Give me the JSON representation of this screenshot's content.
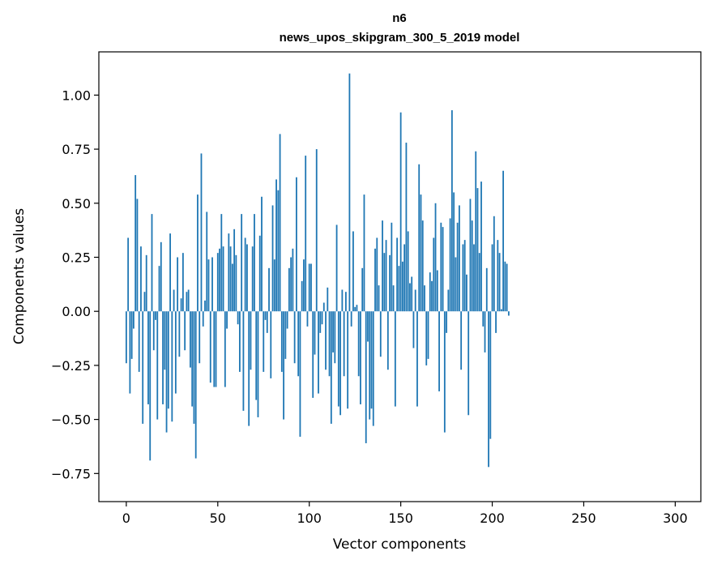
{
  "chart_data": {
    "type": "bar",
    "title": "n6",
    "subtitle": "news_upos_skipgram_300_5_2019 model",
    "xlabel": "Vector components",
    "ylabel": "Components values",
    "xlim": [
      -15,
      314
    ],
    "ylim": [
      -0.88,
      1.2
    ],
    "xticks": [
      0,
      50,
      100,
      150,
      200,
      250,
      300
    ],
    "yticks": [
      -0.75,
      -0.5,
      -0.25,
      0.0,
      0.25,
      0.5,
      0.75,
      1.0
    ],
    "ytick_labels": [
      "−0.75",
      "−0.50",
      "−0.25",
      "0.00",
      "0.25",
      "0.50",
      "0.75",
      "1.00"
    ],
    "bar_color": "#1f77b4",
    "grid": false,
    "values": [
      -0.24,
      0.34,
      -0.38,
      -0.22,
      -0.08,
      0.63,
      0.52,
      -0.28,
      0.3,
      -0.52,
      0.09,
      0.26,
      -0.43,
      -0.69,
      0.45,
      -0.18,
      -0.04,
      -0.5,
      0.21,
      0.32,
      -0.43,
      -0.27,
      -0.56,
      -0.45,
      0.36,
      -0.51,
      0.1,
      -0.38,
      0.25,
      -0.21,
      0.06,
      0.27,
      -0.18,
      0.09,
      0.1,
      -0.26,
      -0.44,
      -0.52,
      -0.68,
      0.54,
      -0.24,
      0.73,
      -0.07,
      0.05,
      0.46,
      0.24,
      -0.33,
      0.25,
      -0.35,
      -0.35,
      0.27,
      0.29,
      0.45,
      0.3,
      -0.35,
      -0.08,
      0.36,
      0.3,
      0.22,
      0.38,
      0.26,
      -0.06,
      -0.28,
      0.45,
      -0.46,
      0.34,
      0.31,
      -0.53,
      -0.27,
      0.3,
      0.45,
      -0.41,
      -0.49,
      0.35,
      0.53,
      -0.28,
      -0.04,
      -0.1,
      0.2,
      -0.31,
      0.49,
      0.24,
      0.61,
      0.56,
      0.82,
      -0.28,
      -0.5,
      -0.22,
      -0.08,
      0.2,
      0.25,
      0.29,
      -0.24,
      0.62,
      -0.3,
      -0.58,
      0.14,
      0.24,
      0.72,
      -0.07,
      0.22,
      0.22,
      -0.4,
      -0.2,
      0.75,
      -0.38,
      -0.1,
      -0.06,
      0.04,
      -0.27,
      0.11,
      -0.3,
      -0.52,
      -0.19,
      -0.24,
      0.4,
      -0.44,
      -0.48,
      0.1,
      -0.3,
      0.09,
      -0.45,
      1.1,
      -0.07,
      0.37,
      0.02,
      0.03,
      -0.3,
      -0.43,
      0.2,
      0.54,
      -0.61,
      -0.14,
      -0.5,
      -0.45,
      -0.53,
      0.29,
      0.34,
      0.12,
      -0.21,
      0.42,
      0.27,
      0.33,
      -0.27,
      0.26,
      0.41,
      0.12,
      -0.44,
      0.34,
      0.21,
      0.92,
      0.23,
      0.31,
      0.78,
      0.37,
      0.13,
      0.16,
      -0.17,
      0.1,
      -0.44,
      0.68,
      0.54,
      0.42,
      0.12,
      -0.25,
      -0.22,
      0.18,
      0.14,
      0.34,
      0.5,
      0.19,
      -0.37,
      0.41,
      0.39,
      -0.56,
      -0.1,
      0.1,
      0.43,
      0.93,
      0.55,
      0.25,
      0.41,
      0.49,
      -0.27,
      0.31,
      0.33,
      0.17,
      -0.48,
      0.52,
      0.42,
      0.31,
      0.74,
      0.57,
      0.27,
      0.6,
      -0.07,
      -0.19,
      0.2,
      -0.72,
      -0.59,
      0.31,
      0.44,
      -0.1,
      0.33,
      0.27,
      0.01,
      0.65,
      0.23,
      0.22,
      -0.02
    ]
  }
}
